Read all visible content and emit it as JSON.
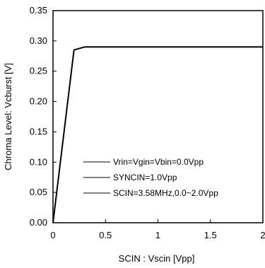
{
  "chart_data": {
    "type": "line",
    "xlabel": "SCIN : Vscin [Vpp]",
    "ylabel": "Chroma Level: Vcburst [V]",
    "xlim": [
      0,
      2
    ],
    "ylim": [
      0,
      0.35
    ],
    "x_ticks": [
      "0",
      "0.5",
      "1",
      "1.5",
      "2"
    ],
    "y_ticks": [
      "0.00",
      "0.05",
      "0.10",
      "0.15",
      "0.20",
      "0.25",
      "0.30",
      "0.35"
    ],
    "grid": false,
    "series": [
      {
        "x": [
          0.0,
          0.2,
          0.3,
          0.5,
          1.0,
          1.5,
          2.0
        ],
        "y": [
          0.0,
          0.285,
          0.29,
          0.29,
          0.29,
          0.29,
          0.29
        ]
      }
    ],
    "annotations": [
      "Vrin=Vgin=Vbin=0.0Vpp",
      "SYNCIN=1.0Vpp",
      "SCIN=3.58MHz,0.0~2.0Vpp"
    ]
  }
}
